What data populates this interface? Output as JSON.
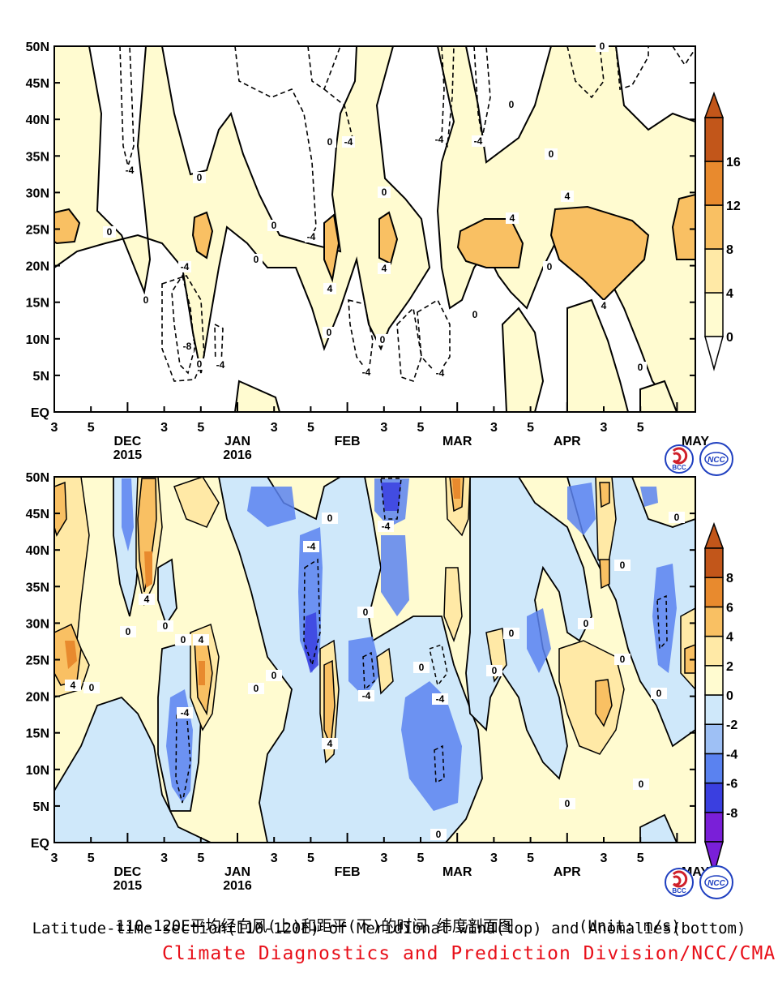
{
  "caption": {
    "line_cn": "110-120E平均经向风(上)和距平(下)的时间 纬度剖面图",
    "unit": "(Unit: m/s)",
    "line_en": "Latitude-time section(110-120E) of Meridional wind(top) and Anomalies(bottom)",
    "credit": "Climate Diagnostics and Prediction Division/NCC/CMA"
  },
  "logos": {
    "bcc": "BCC",
    "ncc": "NCC"
  },
  "chart_data": [
    {
      "type": "heatmap",
      "title": "Meridional wind (top)",
      "y_ticks": [
        "EQ",
        "5N",
        "10N",
        "15N",
        "20N",
        "25N",
        "30N",
        "35N",
        "40N",
        "45N",
        "50N"
      ],
      "x_ticks": [
        "3",
        "5",
        "",
        "3",
        "5",
        "",
        "3",
        "5",
        "",
        "3",
        "5",
        "",
        "3",
        "5",
        "",
        "3",
        "5",
        ""
      ],
      "month_labels": [
        "DEC",
        "JAN",
        "FEB",
        "MAR",
        "APR",
        "MAY"
      ],
      "year_labels": [
        "2015",
        "2016"
      ],
      "colorbar": {
        "levels": [
          "0",
          "4",
          "8",
          "12",
          "16"
        ],
        "colors": [
          "#fffbd0",
          "#ffe9a6",
          "#f9c063",
          "#e88a2e",
          "#c2561a"
        ]
      },
      "contour_labels": [
        "0",
        "-4",
        "4",
        "-8"
      ],
      "ylim": [
        0,
        50
      ],
      "note": "values range approx -8 to 8 m/s"
    },
    {
      "type": "heatmap",
      "title": "Anomalies (bottom)",
      "y_ticks": [
        "EQ",
        "5N",
        "10N",
        "15N",
        "20N",
        "25N",
        "30N",
        "35N",
        "40N",
        "45N",
        "50N"
      ],
      "x_ticks": [
        "3",
        "5",
        "",
        "3",
        "5",
        "",
        "3",
        "5",
        "",
        "3",
        "5",
        "",
        "3",
        "5",
        "",
        "3",
        "5",
        ""
      ],
      "month_labels": [
        "DEC",
        "JAN",
        "FEB",
        "MAR",
        "APR",
        "MAY"
      ],
      "year_labels": [
        "2015",
        "2016"
      ],
      "colorbar": {
        "levels": [
          "-8",
          "-6",
          "-4",
          "-2",
          "0",
          "2",
          "4",
          "6",
          "8"
        ],
        "colors": [
          "#7a1fd8",
          "#3a3fe0",
          "#5a82f0",
          "#9ec0f5",
          "#cfe8fa",
          "#fffbd0",
          "#ffe9a6",
          "#f9c063",
          "#e88a2e",
          "#c2561a"
        ]
      },
      "contour_labels": [
        "0",
        "-4",
        "4"
      ],
      "ylim": [
        0,
        50
      ]
    }
  ]
}
